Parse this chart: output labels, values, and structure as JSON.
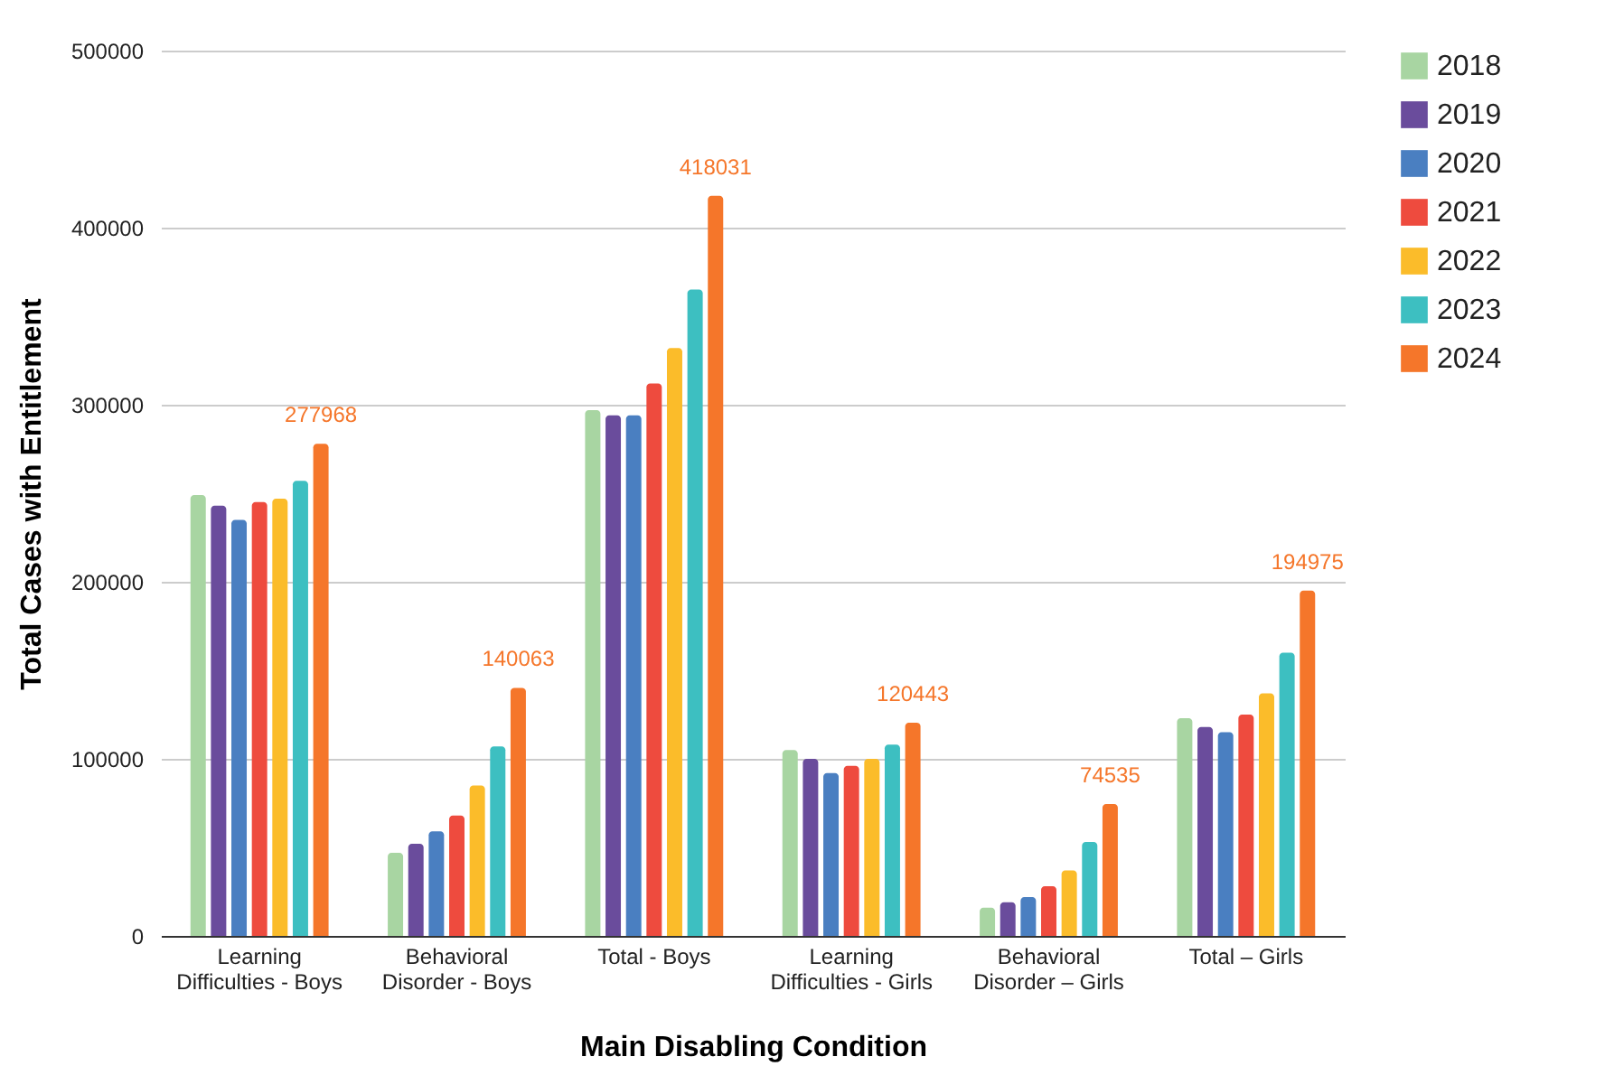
{
  "chart_data": {
    "type": "bar",
    "xlabel": "Main Disabling Condition",
    "ylabel": "Total Cases with Entitlement",
    "categories": [
      "Learning Difficulties - Boys",
      "Behavioral Disorder - Boys",
      "Total - Boys",
      "Learning Difficulties - Girls",
      "Behavioral Disorder – Girls",
      "Total – Girls"
    ],
    "series": [
      {
        "name": "2018",
        "color": "#a8d5a2",
        "values": [
          249000,
          47000,
          297000,
          105000,
          16000,
          123000
        ]
      },
      {
        "name": "2019",
        "color": "#6a4c9c",
        "values": [
          243000,
          52000,
          294000,
          100000,
          19000,
          118000
        ]
      },
      {
        "name": "2020",
        "color": "#4a7fc1",
        "values": [
          235000,
          59000,
          294000,
          92000,
          22000,
          115000
        ]
      },
      {
        "name": "2021",
        "color": "#ee4b3e",
        "values": [
          245000,
          68000,
          312000,
          96000,
          28000,
          125000
        ]
      },
      {
        "name": "2022",
        "color": "#fbbc2a",
        "values": [
          247000,
          85000,
          332000,
          100000,
          37000,
          137000
        ]
      },
      {
        "name": "2023",
        "color": "#3dbfc1",
        "values": [
          257000,
          107000,
          365000,
          108000,
          53000,
          160000
        ]
      },
      {
        "name": "2024",
        "color": "#f5762a",
        "values": [
          277968,
          140063,
          418031,
          120443,
          74535,
          194975
        ],
        "value_labels": [
          "277968",
          "140063",
          "418031",
          "120443",
          "74535",
          "194975"
        ]
      }
    ],
    "ylim": [
      0,
      500000
    ],
    "yticks": [
      0,
      100000,
      200000,
      300000,
      400000,
      500000
    ],
    "grid": "y",
    "legend": "right"
  }
}
